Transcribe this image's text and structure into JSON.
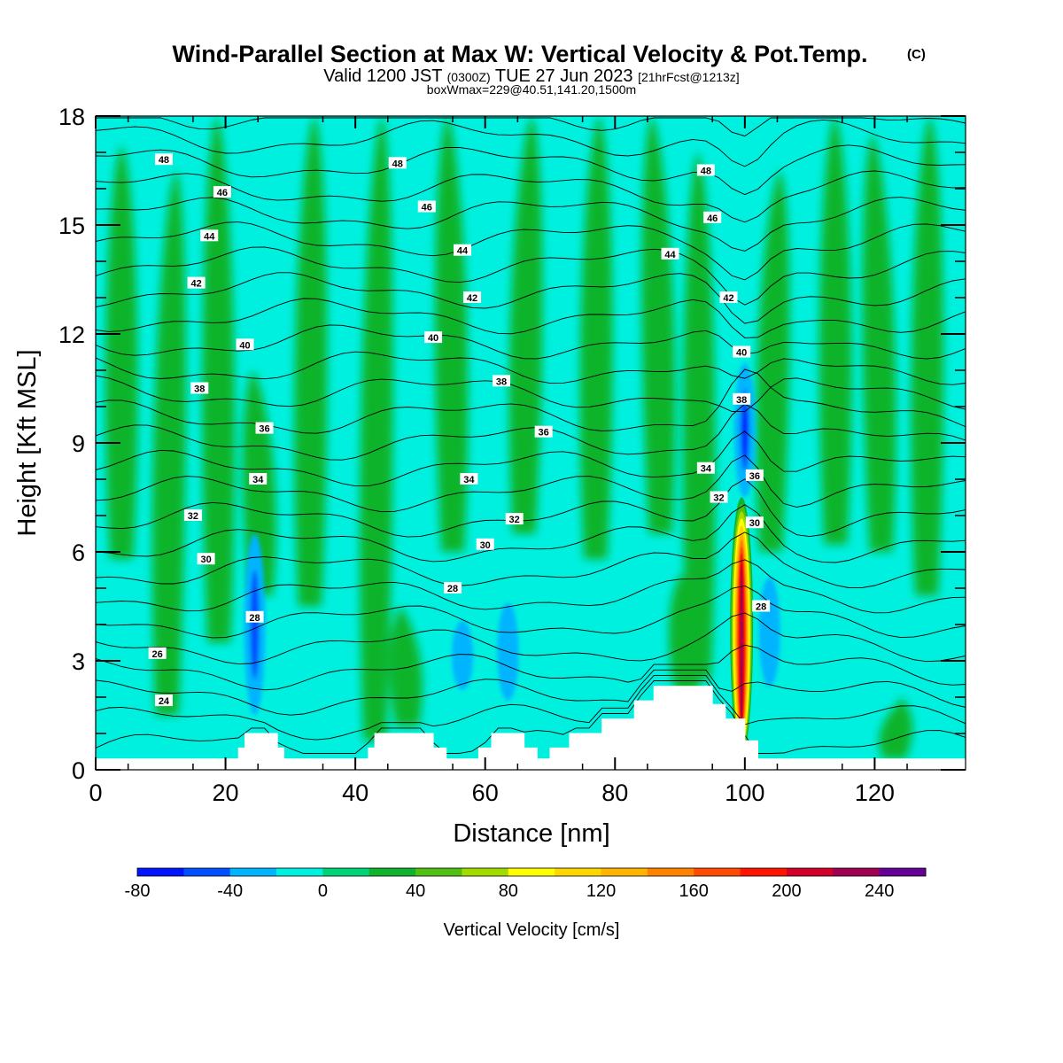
{
  "header": {
    "title": "Wind-Parallel Section at Max W: Vertical Velocity & Pot.Temp.",
    "copyright": "(C)",
    "valid_prefix": "Valid 1200 JST",
    "valid_zulu": "(0300Z)",
    "valid_date": "TUE 27 Jun 2023",
    "forecast": "[21hrFcst@1213z]",
    "boxline": "boxWmax=229@40.51,141.20,1500m"
  },
  "chart_data": {
    "type": "heatmap",
    "title": "Wind-Parallel Section at Max W: Vertical Velocity & Pot.Temp.",
    "xlabel": "Distance [nm]",
    "ylabel": "Height [Kft MSL]",
    "xlim": [
      0,
      134
    ],
    "ylim": [
      0,
      18
    ],
    "x_ticks": [
      "0",
      "20",
      "40",
      "60",
      "80",
      "100",
      "120"
    ],
    "y_ticks": [
      "0",
      "3",
      "6",
      "9",
      "12",
      "15",
      "18"
    ],
    "colorbar": {
      "label": "Vertical Velocity [cm/s]",
      "min": -80,
      "max": 260,
      "step": 20,
      "tick_labels": [
        "-80",
        "-40",
        "0",
        "40",
        "80",
        "120",
        "160",
        "200",
        "240"
      ],
      "colors": [
        "#0014ff",
        "#0050ff",
        "#00b4ff",
        "#00f0e0",
        "#00d278",
        "#10b42c",
        "#50c014",
        "#a0dc00",
        "#ffff00",
        "#ffd700",
        "#ffb400",
        "#ff8200",
        "#ff4b00",
        "#ff1400",
        "#d20028",
        "#a00050",
        "#640096"
      ]
    },
    "background_color": "#00f0e0",
    "updraft_patches": [
      {
        "x": 4,
        "y0": 5.8,
        "y1": 17.2
      },
      {
        "x": 11,
        "y0": 1.5,
        "y1": 16.5
      },
      {
        "x": 19,
        "y0": 3.5,
        "y1": 18
      },
      {
        "x": 25.5,
        "y0": 4.8,
        "y1": 11
      },
      {
        "x": 33,
        "y0": 4.5,
        "y1": 18
      },
      {
        "x": 43,
        "y0": 0.8,
        "y1": 18
      },
      {
        "x": 48,
        "y0": 1.2,
        "y1": 4.5
      },
      {
        "x": 55,
        "y0": 6,
        "y1": 18
      },
      {
        "x": 66,
        "y0": 6.5,
        "y1": 18
      },
      {
        "x": 77,
        "y0": 5.8,
        "y1": 18
      },
      {
        "x": 87,
        "y0": 6.5,
        "y1": 18
      },
      {
        "x": 93,
        "y0": 2.5,
        "y1": 17
      },
      {
        "x": 104,
        "y0": 6,
        "y1": 16.5
      },
      {
        "x": 114,
        "y0": 6.2,
        "y1": 18
      },
      {
        "x": 121,
        "y0": 6,
        "y1": 17.5
      },
      {
        "x": 128,
        "y0": 4.8,
        "y1": 18
      },
      {
        "x": 123,
        "y0": 0.3,
        "y1": 2
      },
      {
        "x": 91,
        "y0": 2.1,
        "y1": 5.4
      }
    ],
    "downdraft_patches": [
      {
        "x": 24.5,
        "y0": 1.5,
        "y1": 6.5,
        "min": -50
      },
      {
        "x": 56.5,
        "y0": 2.2,
        "y1": 4.1,
        "min": -30
      },
      {
        "x": 63.5,
        "y0": 1.9,
        "y1": 4.6,
        "min": -30
      },
      {
        "x": 100,
        "y0": 7.5,
        "y1": 11.2,
        "min": -70
      },
      {
        "x": 103.8,
        "y0": 2.3,
        "y1": 5.3,
        "min": -30
      }
    ],
    "max_updraft": {
      "x": 99.5,
      "y0": 0.4,
      "y1": 7.5,
      "max": 229
    },
    "terrain": {
      "x": [
        0,
        20,
        22,
        23,
        27,
        28,
        29,
        30,
        40,
        42,
        43,
        48,
        52,
        54,
        58,
        59,
        61,
        64,
        66,
        68,
        70,
        73,
        78,
        83,
        86,
        91,
        95,
        97,
        100,
        102,
        104,
        106,
        108,
        110,
        115,
        120,
        125,
        130,
        134
      ],
      "y": [
        0.3,
        0.3,
        0.6,
        1.0,
        1.0,
        0.6,
        0.3,
        0.3,
        0.3,
        0.6,
        1.0,
        1.0,
        0.6,
        0.3,
        0.3,
        0.6,
        1.0,
        1.0,
        0.6,
        0.3,
        0.6,
        1.0,
        1.4,
        1.9,
        2.3,
        2.3,
        1.8,
        1.4,
        0.8,
        0.3,
        0.3,
        0.3,
        0.3,
        0.3,
        0.3,
        0.3,
        0.3,
        0.3,
        0.3
      ]
    },
    "theta_contours": {
      "levels": [
        24,
        25,
        26,
        27,
        28,
        29,
        30,
        31,
        32,
        33,
        34,
        35,
        36,
        37,
        38,
        39,
        40,
        41,
        42,
        43,
        44,
        45,
        46,
        47,
        48,
        49
      ],
      "labels": [
        {
          "text": "48",
          "x": 10.5,
          "y": 16.8
        },
        {
          "text": "46",
          "x": 19.5,
          "y": 15.9
        },
        {
          "text": "44",
          "x": 17.5,
          "y": 14.7
        },
        {
          "text": "42",
          "x": 15.5,
          "y": 13.4
        },
        {
          "text": "40",
          "x": 23,
          "y": 11.7
        },
        {
          "text": "38",
          "x": 16,
          "y": 10.5
        },
        {
          "text": "36",
          "x": 26,
          "y": 9.4
        },
        {
          "text": "34",
          "x": 25,
          "y": 8
        },
        {
          "text": "32",
          "x": 15,
          "y": 7
        },
        {
          "text": "30",
          "x": 17,
          "y": 5.8
        },
        {
          "text": "28",
          "x": 24.5,
          "y": 4.2
        },
        {
          "text": "26",
          "x": 9.5,
          "y": 3.2
        },
        {
          "text": "24",
          "x": 10.5,
          "y": 1.9
        },
        {
          "text": "48",
          "x": 46.5,
          "y": 16.7
        },
        {
          "text": "46",
          "x": 51,
          "y": 15.5
        },
        {
          "text": "44",
          "x": 56.5,
          "y": 14.3
        },
        {
          "text": "42",
          "x": 58,
          "y": 13
        },
        {
          "text": "40",
          "x": 52,
          "y": 11.9
        },
        {
          "text": "38",
          "x": 62.5,
          "y": 10.7
        },
        {
          "text": "36",
          "x": 69,
          "y": 9.3
        },
        {
          "text": "34",
          "x": 57.5,
          "y": 8
        },
        {
          "text": "32",
          "x": 64.5,
          "y": 6.9
        },
        {
          "text": "30",
          "x": 60,
          "y": 6.2
        },
        {
          "text": "28",
          "x": 55,
          "y": 5
        },
        {
          "text": "48",
          "x": 94,
          "y": 16.5
        },
        {
          "text": "46",
          "x": 95,
          "y": 15.2
        },
        {
          "text": "44",
          "x": 88.5,
          "y": 14.2
        },
        {
          "text": "42",
          "x": 97.5,
          "y": 13
        },
        {
          "text": "40",
          "x": 99.5,
          "y": 11.5
        },
        {
          "text": "38",
          "x": 99.5,
          "y": 10.2
        },
        {
          "text": "36",
          "x": 101.5,
          "y": 8.1
        },
        {
          "text": "34",
          "x": 94,
          "y": 8.3
        },
        {
          "text": "32",
          "x": 96,
          "y": 7.5
        },
        {
          "text": "30",
          "x": 101.5,
          "y": 6.8
        },
        {
          "text": "28",
          "x": 102.5,
          "y": 4.5
        }
      ]
    }
  }
}
